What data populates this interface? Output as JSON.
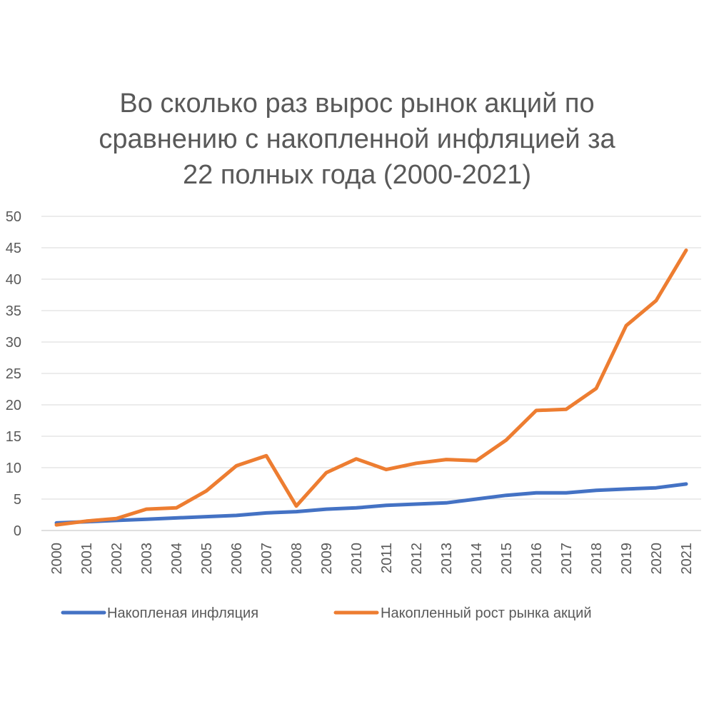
{
  "chart_data": {
    "type": "line",
    "title_lines": [
      "Во сколько раз вырос рынок акций по",
      "сравнению с накопленной инфляцией за",
      "22 полных года (2000-2021)"
    ],
    "categories": [
      "2000",
      "2001",
      "2002",
      "2003",
      "2004",
      "2005",
      "2006",
      "2007",
      "2008",
      "2009",
      "2010",
      "2011",
      "2012",
      "2013",
      "2014",
      "2015",
      "2016",
      "2017",
      "2018",
      "2019",
      "2020",
      "2021"
    ],
    "y_ticks": [
      "0",
      "5",
      "10",
      "15",
      "20",
      "25",
      "30",
      "35",
      "40",
      "45",
      "50"
    ],
    "ylim": [
      0,
      50
    ],
    "grid": true,
    "legend_position": "bottom",
    "series": [
      {
        "name": "Накопленая инфляция",
        "color": "#4472C4",
        "values": [
          1.2,
          1.4,
          1.6,
          1.8,
          2.0,
          2.2,
          2.4,
          2.8,
          3.0,
          3.4,
          3.6,
          4.0,
          4.2,
          4.4,
          5.0,
          5.6,
          6.0,
          6.0,
          6.4,
          6.6,
          6.8,
          7.4
        ]
      },
      {
        "name": "Накопленный рост рынка акций",
        "color": "#ED7D31",
        "values": [
          0.9,
          1.5,
          1.9,
          3.4,
          3.6,
          6.3,
          10.3,
          11.9,
          3.9,
          9.2,
          11.4,
          9.7,
          10.7,
          11.3,
          11.1,
          14.4,
          19.1,
          19.3,
          22.6,
          32.6,
          36.6,
          44.6
        ]
      }
    ]
  }
}
